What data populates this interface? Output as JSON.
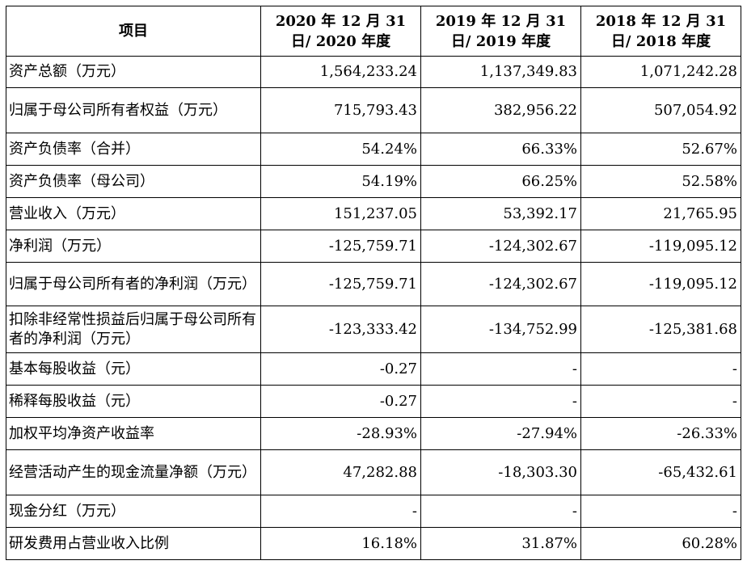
{
  "table": {
    "headers": [
      "项目",
      "2020 年 12 月 31 日/ 2020 年度",
      "2019 年 12 月 31 日/ 2019 年度",
      "2018 年 12 月 31 日/ 2018 年度"
    ],
    "rows": [
      {
        "label": "资产总额（万元）",
        "v2020": "1,564,233.24",
        "v2019": "1,137,349.83",
        "v2018": "1,071,242.28"
      },
      {
        "label": "归属于母公司所有者权益（万元）",
        "v2020": "715,793.43",
        "v2019": "382,956.22",
        "v2018": "507,054.92"
      },
      {
        "label": "资产负债率（合并）",
        "v2020": "54.24%",
        "v2019": "66.33%",
        "v2018": "52.67%"
      },
      {
        "label": "资产负债率（母公司）",
        "v2020": "54.19%",
        "v2019": "66.25%",
        "v2018": "52.58%"
      },
      {
        "label": "营业收入（万元）",
        "v2020": "151,237.05",
        "v2019": "53,392.17",
        "v2018": "21,765.95"
      },
      {
        "label": "净利润（万元）",
        "v2020": "-125,759.71",
        "v2019": "-124,302.67",
        "v2018": "-119,095.12"
      },
      {
        "label": "归属于母公司所有者的净利润（万元）",
        "v2020": "-125,759.71",
        "v2019": "-124,302.67",
        "v2018": "-119,095.12"
      },
      {
        "label": "扣除非经常性损益后归属于母公司所有者的净利润（万元）",
        "v2020": "-123,333.42",
        "v2019": "-134,752.99",
        "v2018": "-125,381.68"
      },
      {
        "label": "基本每股收益（元）",
        "v2020": "-0.27",
        "v2019": "-",
        "v2018": "-"
      },
      {
        "label": "稀释每股收益（元）",
        "v2020": "-0.27",
        "v2019": "-",
        "v2018": "-"
      },
      {
        "label": "加权平均净资产收益率",
        "v2020": "-28.93%",
        "v2019": "-27.94%",
        "v2018": "-26.33%"
      },
      {
        "label": "经营活动产生的现金流量净额（万元）",
        "v2020": "47,282.88",
        "v2019": "-18,303.30",
        "v2018": "-65,432.61"
      },
      {
        "label": "现金分红（万元）",
        "v2020": "-",
        "v2019": "-",
        "v2018": "-"
      },
      {
        "label": "研发费用占营业收入比例",
        "v2020": "16.18%",
        "v2019": "31.87%",
        "v2018": "60.28%"
      }
    ]
  }
}
